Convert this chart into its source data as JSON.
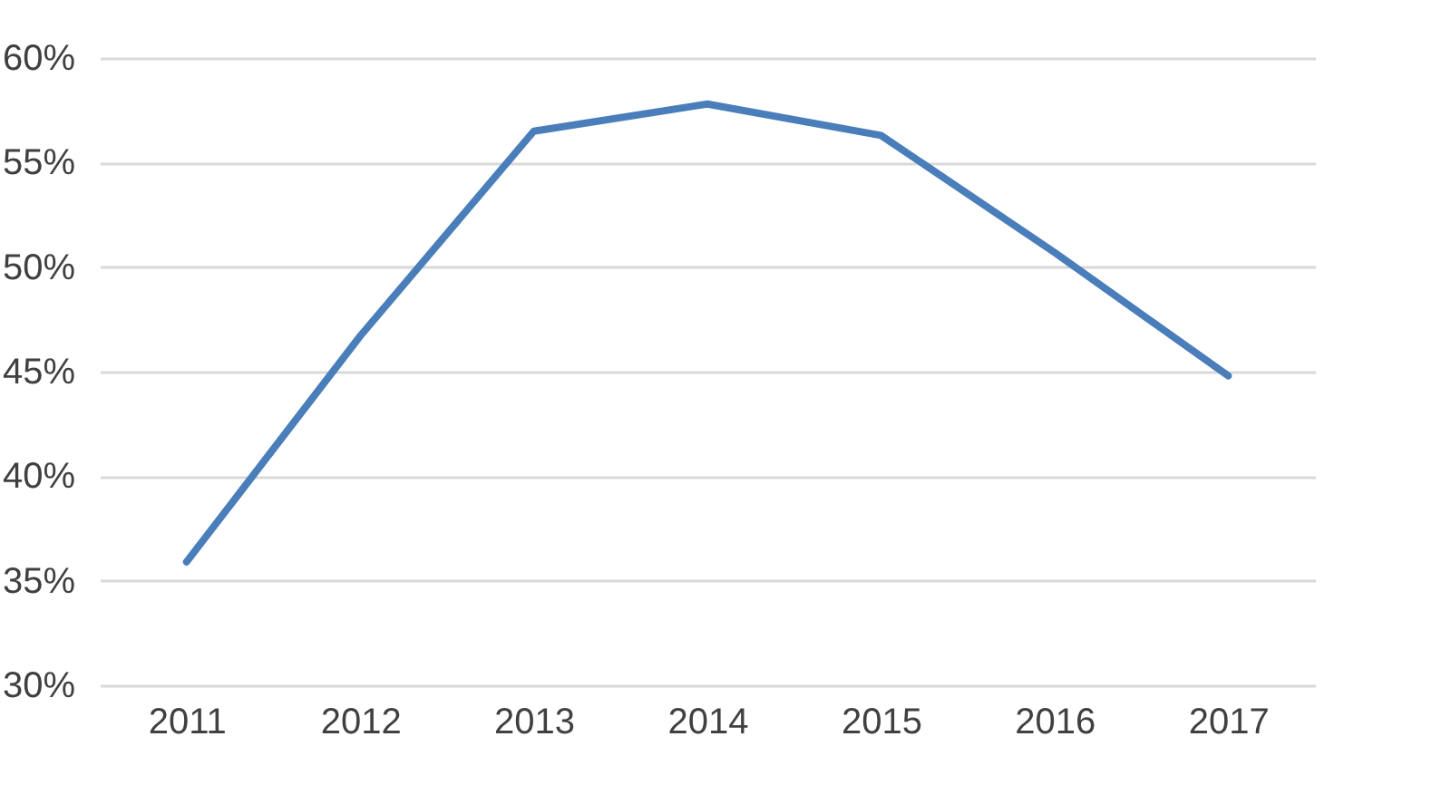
{
  "chart_data": {
    "type": "line",
    "categories": [
      "2011",
      "2012",
      "2013",
      "2014",
      "2015",
      "2016",
      "2017"
    ],
    "series": [
      {
        "color": "#4a7ebb",
        "values": [
          35.9,
          46.7,
          56.5,
          57.8,
          56.3,
          50.7,
          44.8
        ]
      }
    ],
    "ylim": [
      30,
      60
    ],
    "yticks": [
      {
        "value": 30,
        "label": "30%"
      },
      {
        "value": 35,
        "label": "35%"
      },
      {
        "value": 40,
        "label": "40%"
      },
      {
        "value": 45,
        "label": "45%"
      },
      {
        "value": 50,
        "label": "50%"
      },
      {
        "value": 55,
        "label": "55%"
      },
      {
        "value": 60,
        "label": "60%"
      }
    ],
    "grid": "y",
    "marker": "none",
    "line_style": "solid"
  }
}
